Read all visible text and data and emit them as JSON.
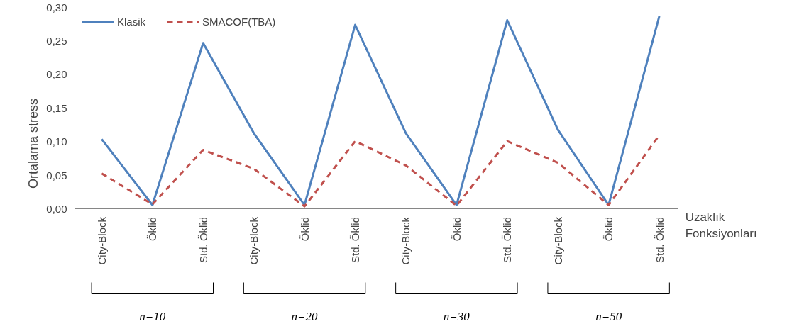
{
  "chart_data": {
    "type": "line",
    "ylabel": "Ortalama stress",
    "xlabel": "Uzaklık Fonksiyonları",
    "categories": [
      "City-Block",
      "Öklid",
      "Std. Öklid",
      "City-Block",
      "Öklid",
      "Std. Öklid",
      "City-Block",
      "Öklid",
      "Std. Öklid",
      "City-Block",
      "Öklid",
      "Std. Öklid"
    ],
    "series": [
      {
        "name": "Klasik",
        "color": "#4f81bd",
        "line_style": "solid",
        "values": [
          0.104,
          0.006,
          0.247,
          0.113,
          0.006,
          0.274,
          0.113,
          0.006,
          0.281,
          0.118,
          0.006,
          0.287
        ]
      },
      {
        "name": "SMACOF(TBA)",
        "color": "#c0504d",
        "line_style": "dashed",
        "values": [
          0.053,
          0.007,
          0.088,
          0.06,
          0.004,
          0.101,
          0.065,
          0.005,
          0.101,
          0.069,
          0.006,
          0.11
        ]
      }
    ],
    "ylim": [
      0,
      0.3
    ],
    "yticks": [
      {
        "value": 0,
        "label": "0,00"
      },
      {
        "value": 0.05,
        "label": "0,05"
      },
      {
        "value": 0.1,
        "label": "0,10"
      },
      {
        "value": 0.15,
        "label": "0,15"
      },
      {
        "value": 0.2,
        "label": "0,20"
      },
      {
        "value": 0.25,
        "label": "0,25"
      },
      {
        "value": 0.3,
        "label": "0,30"
      }
    ],
    "grid": false,
    "legend": "top left",
    "marker": "none",
    "annotations": [
      "n=10",
      "n=20",
      "n=30",
      "n=50"
    ]
  }
}
